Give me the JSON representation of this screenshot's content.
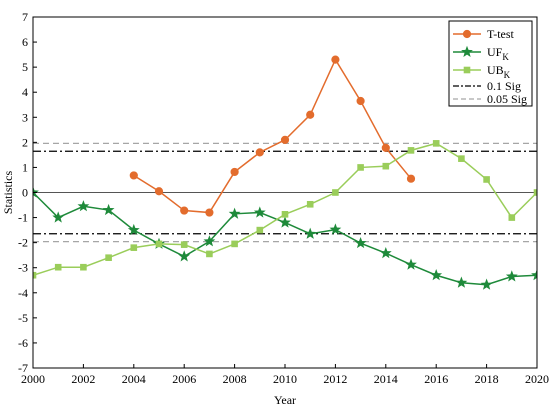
{
  "chart_data": {
    "type": "line",
    "xlabel": "Year",
    "ylabel": "Statistics",
    "xlim": [
      2000,
      2020
    ],
    "ylim": [
      -7,
      7
    ],
    "x_ticks": [
      2000,
      2002,
      2004,
      2006,
      2008,
      2010,
      2012,
      2014,
      2016,
      2018,
      2020
    ],
    "y_ticks": [
      -7,
      -6,
      -5,
      -4,
      -3,
      -2,
      -1,
      0,
      1,
      2,
      3,
      4,
      5,
      6,
      7
    ],
    "grid": false,
    "legend_position": "top-right",
    "zero_line": 0,
    "series": [
      {
        "name": "T-test",
        "color": "#e36c2d",
        "marker": "circle",
        "x": [
          2004,
          2005,
          2006,
          2007,
          2008,
          2009,
          2010,
          2011,
          2012,
          2013,
          2014,
          2015
        ],
        "y": [
          0.68,
          0.05,
          -0.72,
          -0.8,
          0.82,
          1.6,
          2.1,
          3.1,
          5.3,
          3.65,
          1.78,
          0.55
        ]
      },
      {
        "name": "UF",
        "name_sub": "K",
        "color": "#1e8a3a",
        "marker": "star",
        "x": [
          2000,
          2001,
          2002,
          2003,
          2004,
          2005,
          2006,
          2007,
          2008,
          2009,
          2010,
          2011,
          2012,
          2013,
          2014,
          2015,
          2016,
          2017,
          2018,
          2019,
          2020
        ],
        "y": [
          0.0,
          -1.0,
          -0.55,
          -0.7,
          -1.5,
          -2.05,
          -2.55,
          -1.95,
          -0.85,
          -0.8,
          -1.2,
          -1.65,
          -1.48,
          -2.02,
          -2.42,
          -2.88,
          -3.3,
          -3.6,
          -3.68,
          -3.35,
          -3.3
        ]
      },
      {
        "name": "UB",
        "name_sub": "K",
        "color": "#9acd5a",
        "marker": "square",
        "x": [
          2000,
          2001,
          2002,
          2003,
          2004,
          2005,
          2006,
          2007,
          2008,
          2009,
          2010,
          2011,
          2012,
          2013,
          2014,
          2015,
          2016,
          2017,
          2018,
          2019,
          2020
        ],
        "y": [
          -3.3,
          -2.98,
          -2.98,
          -2.6,
          -2.2,
          -2.05,
          -2.08,
          -2.45,
          -2.05,
          -1.5,
          -0.87,
          -0.47,
          0.0,
          1.0,
          1.05,
          1.68,
          1.96,
          1.35,
          0.52,
          -1.0,
          0.0
        ]
      }
    ],
    "reference_lines": [
      {
        "name": "0.1 Sig",
        "values": [
          1.645,
          -1.645
        ],
        "style": "dashdot",
        "color": "#000000"
      },
      {
        "name": "0.05 Sig",
        "values": [
          1.96,
          -1.96
        ],
        "style": "dashed",
        "color": "#a6a6a6"
      }
    ]
  }
}
